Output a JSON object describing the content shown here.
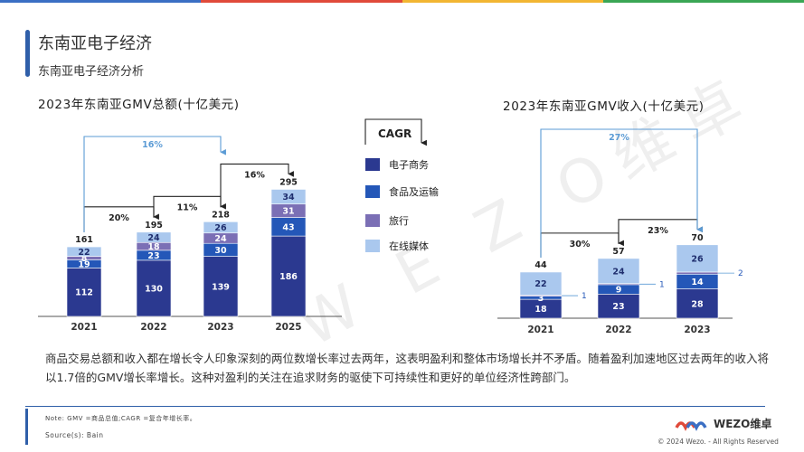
{
  "header": {
    "title": "东南亚电子经济",
    "subtitle": "东南亚电子经济分析"
  },
  "colors": {
    "ecommerce": "#2b3990",
    "food": "#2457b8",
    "travel": "#7b6fb5",
    "media": "#aac8ee",
    "arrow_blue": "#5b9bd5",
    "axis": "#555555"
  },
  "legend": {
    "cagr_label": "CAGR",
    "items": [
      {
        "label": "电子商务",
        "color": "#2b3990"
      },
      {
        "label": "食品及运输",
        "color": "#2457b8"
      },
      {
        "label": "旅行",
        "color": "#7b6fb5"
      },
      {
        "label": "在线媒体",
        "color": "#aac8ee"
      }
    ]
  },
  "chart_data": [
    {
      "type": "bar",
      "stacked": true,
      "title": "2023年东南亚GMV总额(十亿美元)",
      "categories": [
        "2021",
        "2022",
        "2023",
        "2025"
      ],
      "series": [
        {
          "name": "电子商务",
          "values": [
            112,
            130,
            139,
            186
          ]
        },
        {
          "name": "食品及运输",
          "values": [
            19,
            23,
            30,
            43
          ]
        },
        {
          "name": "旅行",
          "values": [
            8,
            18,
            24,
            31
          ]
        },
        {
          "name": "在线媒体",
          "values": [
            22,
            24,
            26,
            34
          ]
        }
      ],
      "segment_labels": [
        [
          "112",
          "19",
          "8",
          "22"
        ],
        [
          "130",
          "23",
          "18",
          "24"
        ],
        [
          "139",
          "30",
          "24",
          "26"
        ],
        [
          "186",
          "43",
          "31",
          "34"
        ]
      ],
      "totals": [
        "161",
        "195",
        "218",
        "295"
      ],
      "growth": [
        {
          "from": "2021",
          "to": "2022",
          "label": "20%"
        },
        {
          "from": "2022",
          "to": "2023",
          "label": "11%"
        },
        {
          "from": "2023",
          "to": "2025",
          "label": "16%"
        }
      ],
      "cagr": {
        "from": "2021",
        "to": "2023",
        "label": "16%"
      }
    },
    {
      "type": "bar",
      "stacked": true,
      "title": "2023年东南亚GMV收入(十亿美元)",
      "categories": [
        "2021",
        "2022",
        "2023"
      ],
      "series": [
        {
          "name": "电子商务",
          "values": [
            18,
            23,
            28
          ]
        },
        {
          "name": "食品及运输",
          "values": [
            3,
            9,
            14
          ]
        },
        {
          "name": "旅行",
          "values": [
            1,
            1,
            2
          ]
        },
        {
          "name": "在线媒体",
          "values": [
            22,
            24,
            26
          ]
        }
      ],
      "segment_labels": [
        [
          "18",
          "3",
          "",
          "22"
        ],
        [
          "23",
          "9",
          "",
          "24"
        ],
        [
          "28",
          "14",
          "",
          "26"
        ]
      ],
      "side_labels": [
        "1",
        "1",
        "2"
      ],
      "totals": [
        "44",
        "57",
        "70"
      ],
      "growth": [
        {
          "from": "2021",
          "to": "2022",
          "label": "30%"
        },
        {
          "from": "2022",
          "to": "2023",
          "label": "23%"
        }
      ],
      "cagr": {
        "from": "2021",
        "to": "2023",
        "label": "27%"
      }
    }
  ],
  "body": {
    "paragraph": "商品交易总额和收入都在增长令人印象深刻的两位数增长率过去两年，这表明盈利和整体市场增长并不矛盾。随着盈利加速地区过去两年的收入将以1.7倍的GMV增长率增长。这种对盈利的关注在追求财务的驱使下可持续性和更好的单位经济性跨部门。"
  },
  "footer": {
    "note": "Note: GMV =商品总值;CAGR =复合年增长率。",
    "source": "Source(s): Bain",
    "brand": "WEZO维卓",
    "copyright": "© 2024 Wezo. - All Rights Reserved"
  },
  "watermark": "W E Z O维卓"
}
